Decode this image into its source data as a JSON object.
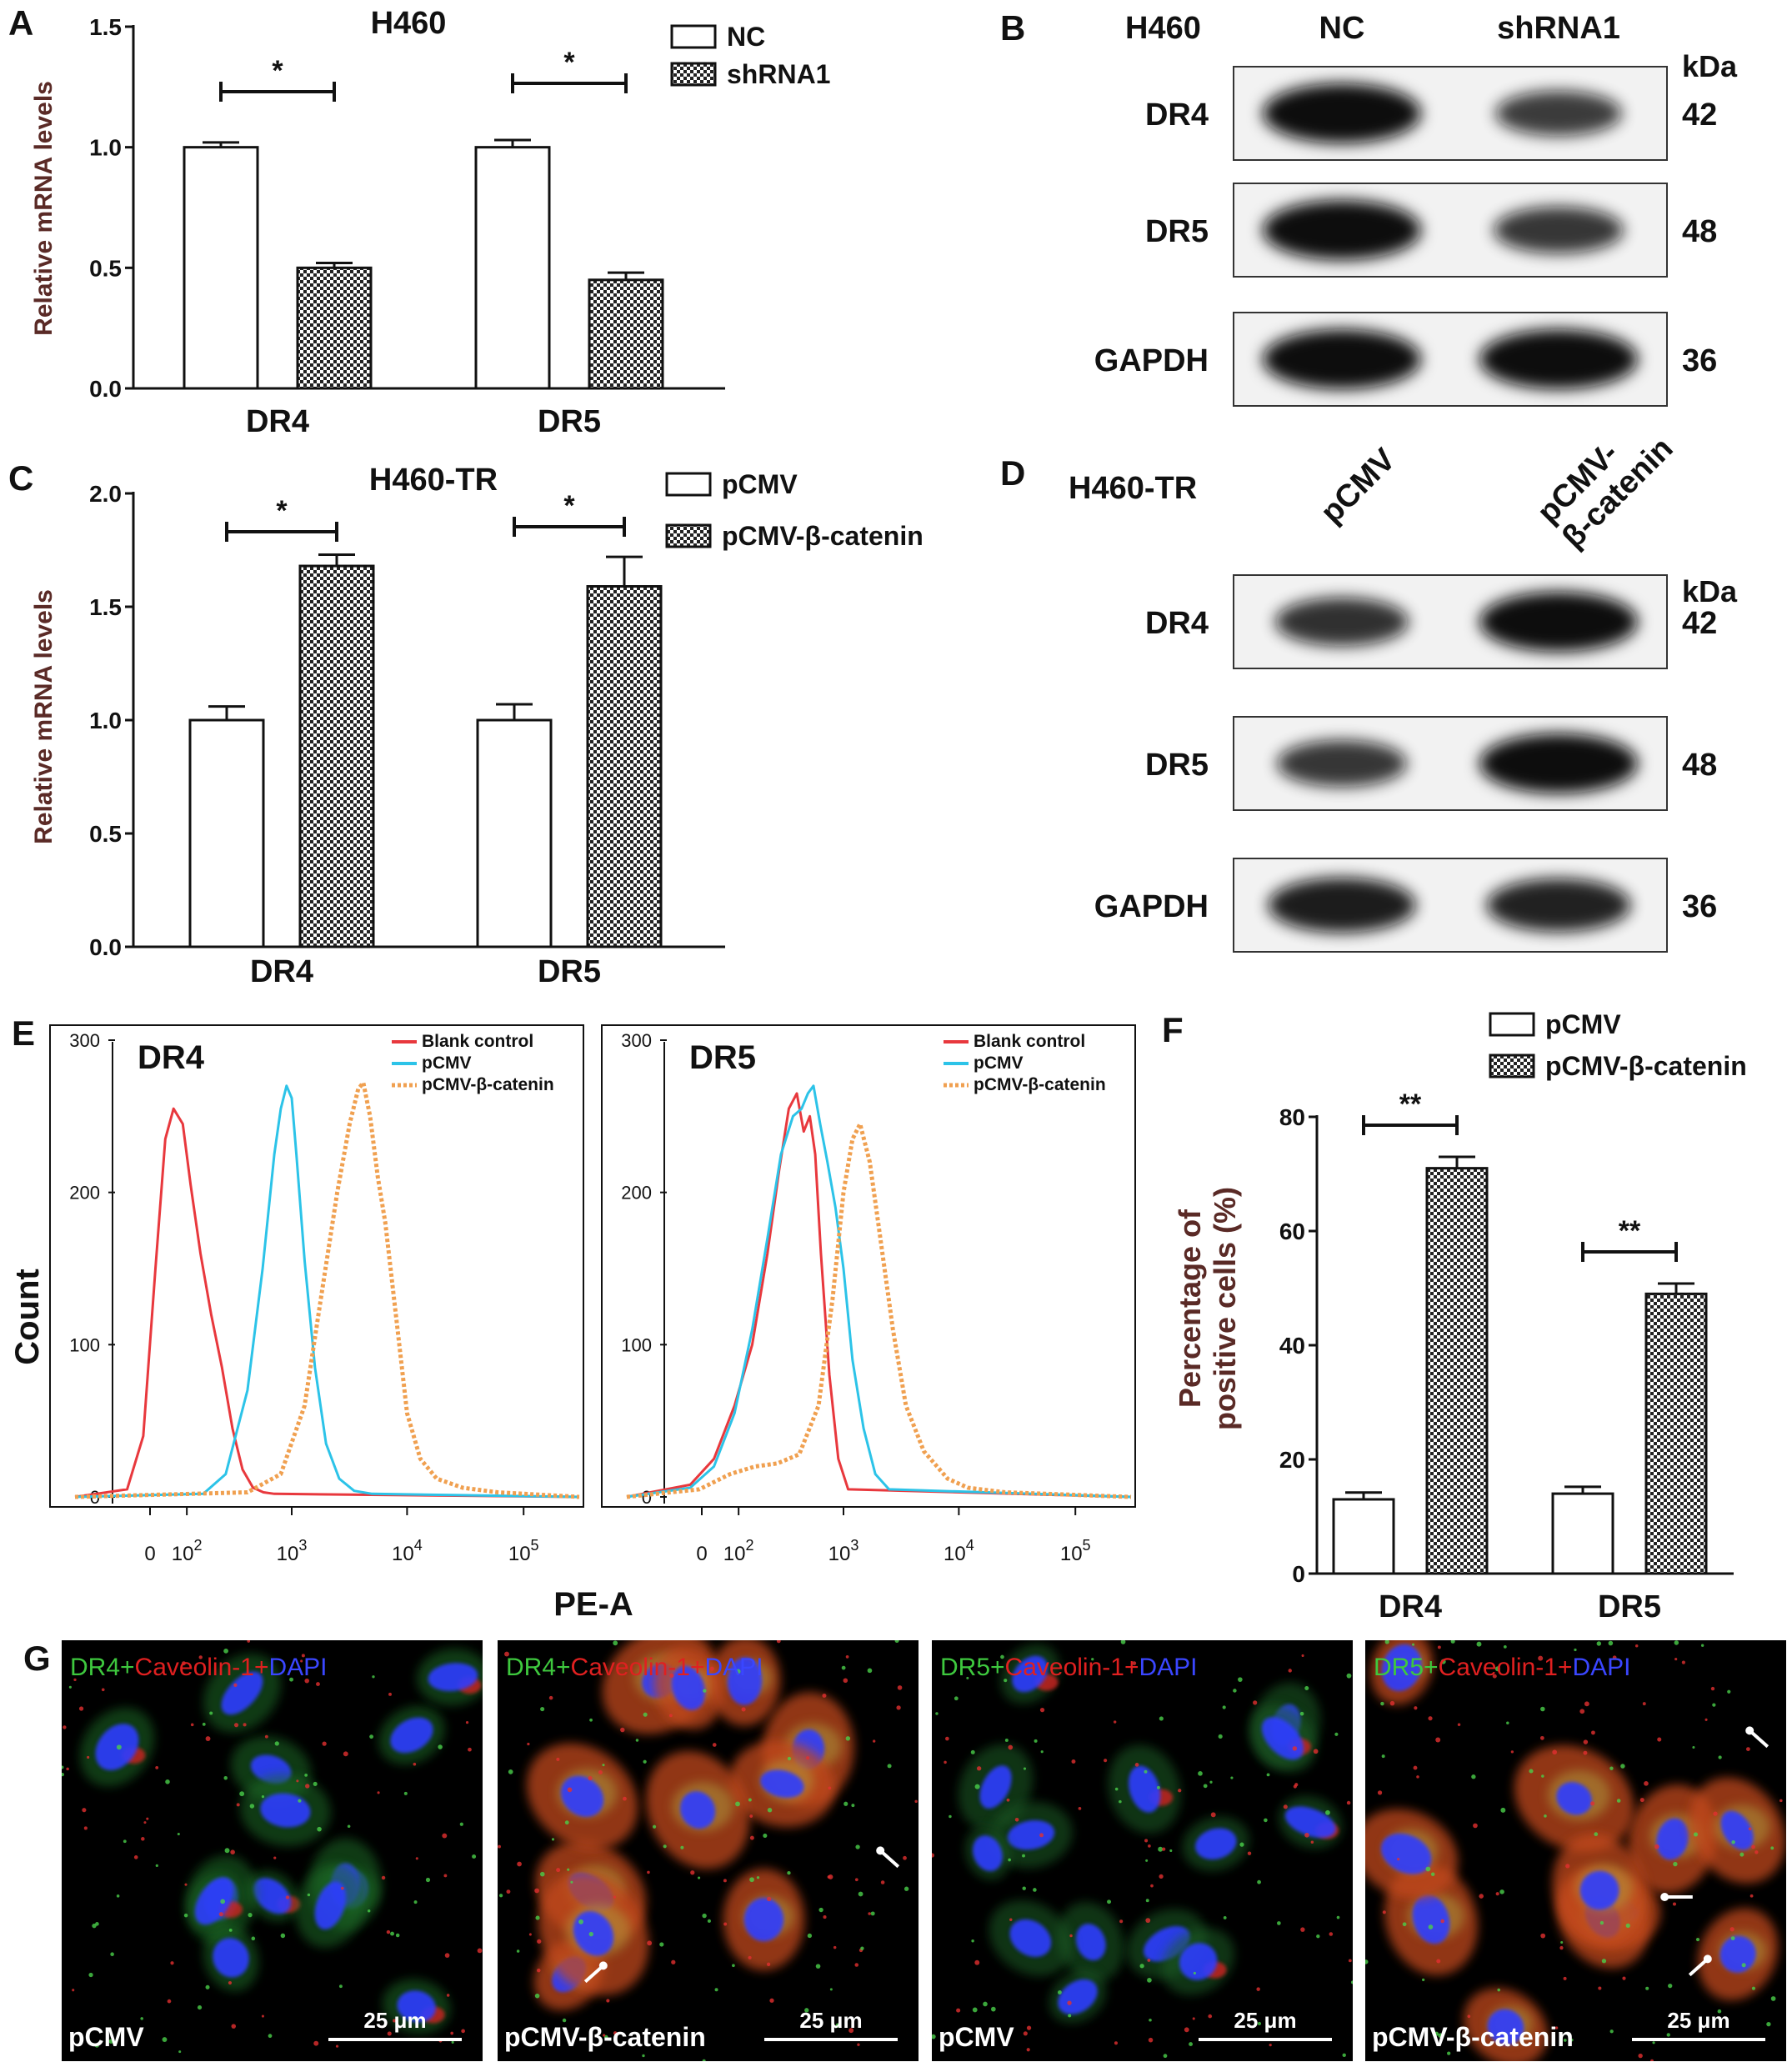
{
  "panel_labels": {
    "A": "A",
    "B": "B",
    "C": "C",
    "D": "D",
    "E": "E",
    "F": "F",
    "G": "G"
  },
  "significance": {
    "single": "*",
    "double": "**"
  },
  "chart_data": [
    {
      "id": "A",
      "type": "bar",
      "title": "H460",
      "ylabel": "Relative mRNA levels",
      "categories": [
        "DR4",
        "DR5"
      ],
      "series": [
        {
          "name": "NC",
          "values": [
            1.0,
            1.0
          ],
          "errors": [
            0.02,
            0.03
          ],
          "pattern": "white"
        },
        {
          "name": "shRNA1",
          "values": [
            0.5,
            0.45
          ],
          "errors": [
            0.02,
            0.03
          ],
          "pattern": "checker"
        }
      ],
      "ylim": [
        0,
        1.5
      ],
      "yticks": [
        "0.0",
        "0.5",
        "1.0",
        "1.5"
      ],
      "legend": "top-right",
      "significance": [
        "*",
        "*"
      ]
    },
    {
      "id": "C",
      "type": "bar",
      "title": "H460-TR",
      "ylabel": "Relative mRNA levels",
      "categories": [
        "DR4",
        "DR5"
      ],
      "series": [
        {
          "name": "pCMV",
          "values": [
            1.0,
            1.0
          ],
          "errors": [
            0.06,
            0.07
          ],
          "pattern": "white"
        },
        {
          "name": "pCMV-β-catenin",
          "values": [
            1.68,
            1.59
          ],
          "errors": [
            0.05,
            0.13
          ],
          "pattern": "checker"
        }
      ],
      "ylim": [
        0,
        2.0
      ],
      "yticks": [
        "0.0",
        "0.5",
        "1.0",
        "1.5",
        "2.0"
      ],
      "legend": "top-right",
      "significance": [
        "*",
        "*"
      ]
    },
    {
      "id": "E",
      "type": "line",
      "xlabel": "PE-A",
      "ylabel": "Count",
      "xscale": "biexponential",
      "xticks": [
        "0",
        "10^2",
        "10^3",
        "10^4",
        "10^5"
      ],
      "yticks": [
        "0",
        "100",
        "200",
        "300"
      ],
      "ylim": [
        0,
        300
      ],
      "legend": "top-right",
      "histograms": [
        {
          "label": "DR4",
          "series": [
            {
              "name": "Blank control",
              "color": "#e8383d",
              "dash": false,
              "x": [
                10,
                25,
                40,
                55,
                70,
                90,
                110,
                140,
                180,
                230,
                290,
                360,
                450,
                560,
                700
              ],
              "y": [
                5,
                40,
                150,
                235,
                255,
                245,
                205,
                160,
                120,
                85,
                45,
                18,
                6,
                3,
                2
              ]
            },
            {
              "name": "pCMV",
              "color": "#2cc3e8",
              "dash": false,
              "x": [
                150,
                250,
                400,
                550,
                700,
                800,
                900,
                1000,
                1100,
                1300,
                1600,
                2000,
                2600,
                3500,
                5000
              ],
              "y": [
                2,
                15,
                70,
                150,
                225,
                255,
                270,
                262,
                225,
                155,
                85,
                35,
                12,
                4,
                2
              ]
            },
            {
              "name": "pCMV-β-catenin",
              "color": "#f0a050",
              "dash": true,
              "x": [
                400,
                800,
                1300,
                1800,
                2500,
                3200,
                3800,
                4200,
                4800,
                5600,
                6500,
                8000,
                10000,
                13000,
                18000,
                30000,
                60000
              ],
              "y": [
                3,
                15,
                60,
                130,
                200,
                245,
                268,
                272,
                250,
                210,
                180,
                120,
                55,
                25,
                12,
                6,
                3
              ]
            }
          ]
        },
        {
          "label": "DR5",
          "series": [
            {
              "name": "Blank control",
              "color": "#e8383d",
              "dash": false,
              "x": [
                20,
                50,
                90,
                140,
                200,
                260,
                320,
                380,
                440,
                500,
                560,
                630,
                750,
                900,
                1100
              ],
              "y": [
                8,
                25,
                60,
                100,
                160,
                215,
                255,
                265,
                240,
                250,
                225,
                160,
                80,
                25,
                5
              ]
            },
            {
              "name": "pCMV",
              "color": "#2cc3e8",
              "dash": false,
              "x": [
                20,
                50,
                90,
                140,
                200,
                270,
                350,
                420,
                480,
                540,
                620,
                720,
                850,
                1000,
                1200,
                1500,
                1900,
                2500
              ],
              "y": [
                6,
                20,
                55,
                110,
                170,
                225,
                250,
                255,
                265,
                270,
                245,
                220,
                190,
                150,
                90,
                45,
                15,
                5
              ]
            },
            {
              "name": "pCMV-β-catenin",
              "color": "#f0a050",
              "dash": true,
              "x": [
                30,
                80,
                150,
                250,
                400,
                600,
                800,
                1000,
                1200,
                1400,
                1700,
                2100,
                2700,
                3500,
                5000,
                8000,
                12000,
                25000
              ],
              "y": [
                5,
                15,
                20,
                22,
                28,
                60,
                130,
                200,
                235,
                245,
                220,
                170,
                110,
                60,
                30,
                12,
                6,
                3
              ]
            }
          ]
        }
      ]
    },
    {
      "id": "F",
      "type": "bar",
      "ylabel": "Percentage of positive cells (%)",
      "categories": [
        "DR4",
        "DR5"
      ],
      "series": [
        {
          "name": "pCMV",
          "values": [
            13,
            14
          ],
          "errors": [
            1.2,
            1.2
          ],
          "pattern": "white"
        },
        {
          "name": "pCMV-β-catenin",
          "values": [
            71,
            49
          ],
          "errors": [
            2.0,
            1.8
          ],
          "pattern": "checker"
        }
      ],
      "ylim": [
        0,
        80
      ],
      "yticks": [
        "0",
        "20",
        "40",
        "60",
        "80"
      ],
      "legend": "top",
      "significance": [
        "**",
        "**"
      ]
    }
  ],
  "blots": {
    "B": {
      "cell_line": "H460",
      "lanes": [
        "NC",
        "shRNA1"
      ],
      "unit": "kDa",
      "rows": [
        {
          "protein": "DR4",
          "kda": "42",
          "intensity": [
            1.0,
            0.55
          ]
        },
        {
          "protein": "DR5",
          "kda": "48",
          "intensity": [
            1.0,
            0.6
          ]
        },
        {
          "protein": "GAPDH",
          "kda": "36",
          "intensity": [
            1.0,
            1.0
          ]
        }
      ]
    },
    "D": {
      "cell_line": "H460-TR",
      "lanes": [
        "pCMV",
        "pCMV-β-catenin"
      ],
      "lane_label_lines": [
        [
          "pCMV"
        ],
        [
          "pCMV-",
          "β-catenin"
        ]
      ],
      "unit": "kDa",
      "rows": [
        {
          "protein": "DR4",
          "kda": "42",
          "intensity": [
            0.65,
            1.0
          ]
        },
        {
          "protein": "DR5",
          "kda": "48",
          "intensity": [
            0.6,
            1.0
          ]
        },
        {
          "protein": "GAPDH",
          "kda": "36",
          "intensity": [
            0.85,
            0.8
          ]
        }
      ]
    }
  },
  "micrographs": [
    {
      "stain": [
        "DR4+",
        "Caveolin-1+",
        "DAPI"
      ],
      "condition": "pCMV",
      "scale_bar": "25 μm",
      "arrows": 0
    },
    {
      "stain": [
        "DR4+",
        "Caveolin-1+",
        "DAPI"
      ],
      "condition": "pCMV-β-catenin",
      "scale_bar": "25 μm",
      "arrows": 2
    },
    {
      "stain": [
        "DR5+",
        "Caveolin-1+",
        "DAPI"
      ],
      "condition": "pCMV",
      "scale_bar": "25 μm",
      "arrows": 0
    },
    {
      "stain": [
        "DR5+",
        "Caveolin-1+",
        "DAPI"
      ],
      "condition": "pCMV-β-catenin",
      "scale_bar": "25 μm",
      "arrows": 3
    }
  ],
  "colors": {
    "axis": "#111111",
    "ylabel": "#5a2a26",
    "blank_control": "#e8383d",
    "pcmv": "#2cc3e8",
    "pcmv_beta_catenin": "#f0a050",
    "green_stain": "#3ec83e",
    "red_stain": "#e02020",
    "blue_stain": "#3a46ff"
  }
}
